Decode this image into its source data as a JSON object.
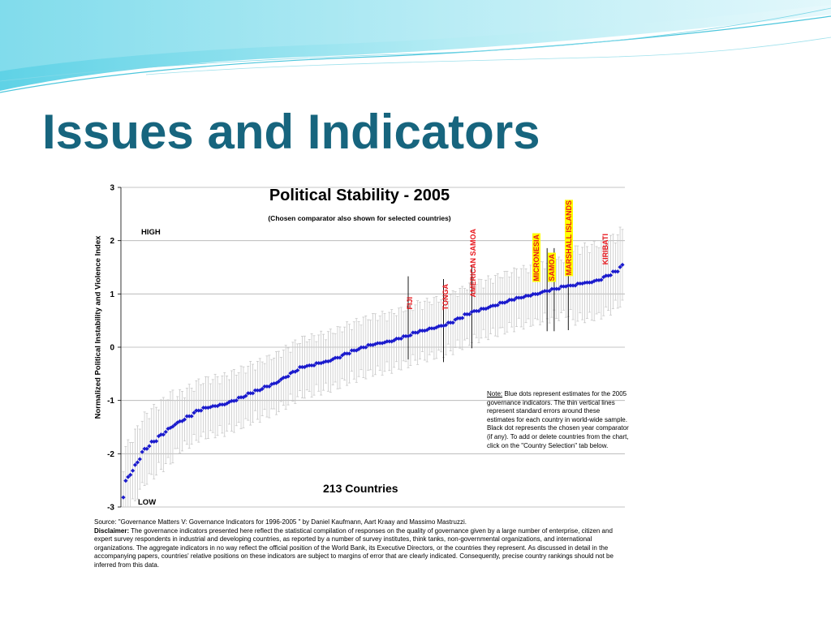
{
  "slide": {
    "title": "Issues and Indicators"
  },
  "chart_data": {
    "type": "scatter",
    "title": "Political Stability - 2005",
    "subtitle": "(Chosen comparator also shown for selected countries)",
    "ylabel": "Normalized Political Instability and Violence Index",
    "xlabel": "",
    "ylim": [
      -3,
      3
    ],
    "yticks": [
      "3",
      "2",
      "1",
      "0",
      "-1",
      "-2",
      "-3"
    ],
    "grid": true,
    "high_label": "HIGH",
    "low_label": "LOW",
    "count_label": "213 Countries",
    "colors": {
      "estimate": "#1a1acc",
      "error_bar": "#c8c8c8",
      "comparator": "#000000",
      "tag_text": "#e8151b",
      "tag_highlight": "#ffff00"
    },
    "n_countries": 213,
    "estimate_profile": {
      "rank_fraction": [
        0,
        0.005,
        0.02,
        0.04,
        0.07,
        0.1,
        0.15,
        0.2,
        0.25,
        0.3,
        0.35,
        0.4,
        0.45,
        0.5,
        0.55,
        0.6,
        0.65,
        0.7,
        0.75,
        0.8,
        0.85,
        0.9,
        0.95,
        0.985,
        1
      ],
      "value": [
        -2.82,
        -2.5,
        -2.3,
        -1.95,
        -1.7,
        -1.47,
        -1.2,
        -1.08,
        -0.9,
        -0.7,
        -0.42,
        -0.3,
        -0.12,
        0.04,
        0.14,
        0.3,
        0.43,
        0.65,
        0.8,
        0.92,
        1.06,
        1.14,
        1.25,
        1.4,
        1.52
      ]
    },
    "highlighted_countries": [
      {
        "name": "FIJI",
        "rank": 121,
        "value": 0.55,
        "comparator": true,
        "highlight": false
      },
      {
        "name": "TONGA",
        "rank": 136,
        "value": 0.5,
        "comparator": true,
        "highlight": false
      },
      {
        "name": "AMERICAN SAMOA",
        "rank": 148,
        "value": 0.76,
        "comparator": true,
        "highlight": false
      },
      {
        "name": "MICRONESIA",
        "rank": 180,
        "value": 1.08,
        "comparator": true,
        "highlight": true
      },
      {
        "name": "SAMOA",
        "rank": 183,
        "value": 1.08,
        "comparator": true,
        "highlight": true
      },
      {
        "name": "MARSHALL ISLANDS",
        "rank": 189,
        "value": 1.1,
        "comparator": true,
        "highlight": true
      },
      {
        "name": "KIRIBATI",
        "rank": 204,
        "value": 1.38,
        "comparator": false,
        "highlight": false
      }
    ],
    "note": {
      "heading": "Note:",
      "text": "Blue dots represent estimates for the 2005 governance indicators. The thin vertical lines represent standard errors around these estimates for each country in world-wide sample. Black dot represents the chosen year comparator (if any). To add or delete countries from the chart, click on the \"Country Selection\" tab below."
    },
    "source": {
      "line": "Source: \"Governance Matters V: Governance Indicators for 1996-2005 \" by Daniel Kaufmann, Aart Kraay and Massimo Mastruzzi.",
      "disclaimer_label": "Disclaimer:",
      "disclaimer_text": "The governance indicators presented here reflect the statistical compilation of responses on the quality of governance given by a large number of enterprise, citizen and expert survey respondents in industrial and developing countries, as reported by a number of survey institutes, think tanks, non-governmental organizations, and international organizations. The aggregate indicators in no way reflect the official position of the World Bank, its Executive Directors, or the countries they represent. As discussed in detail in the accompanying papers, countries' relative positions on these indicators are subject to margins of error that are clearly indicated. Consequently, precise country rankings should not be inferred from this data."
    }
  }
}
